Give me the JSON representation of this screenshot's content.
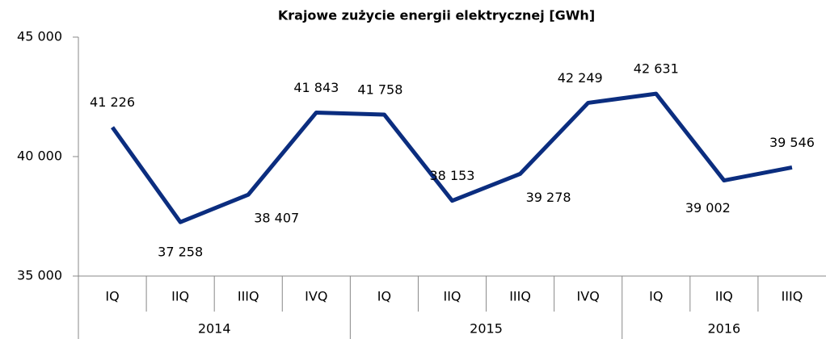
{
  "chart_data": {
    "type": "line",
    "title": "Krajowe zużycie energii elektrycznej [GWh]",
    "categories": [
      "IQ",
      "IIQ",
      "IIIQ",
      "IVQ",
      "IQ",
      "IIQ",
      "IIIQ",
      "IVQ",
      "IQ",
      "IIQ",
      "IIIQ"
    ],
    "years": [
      "2014",
      null,
      null,
      null,
      "2015",
      null,
      null,
      null,
      "2016",
      null,
      null
    ],
    "series": [
      {
        "name": "Krajowe zużycie energii elektrycznej",
        "color": "#0b2d7f",
        "values": [
          41226,
          37258,
          38407,
          41843,
          41758,
          38153,
          39278,
          42249,
          42631,
          39002,
          39546
        ],
        "value_labels": [
          "41 226",
          "37 258",
          "38 407",
          "41 843",
          "41 758",
          "38 153",
          "39 278",
          "42 249",
          "42 631",
          "39 002",
          "39 546"
        ]
      }
    ],
    "ylim": [
      35000,
      45000
    ],
    "yticks": [
      {
        "value": 35000,
        "label": "35 000"
      },
      {
        "value": 40000,
        "label": "40 000"
      },
      {
        "value": 45000,
        "label": "45 000"
      }
    ],
    "grid": false
  }
}
